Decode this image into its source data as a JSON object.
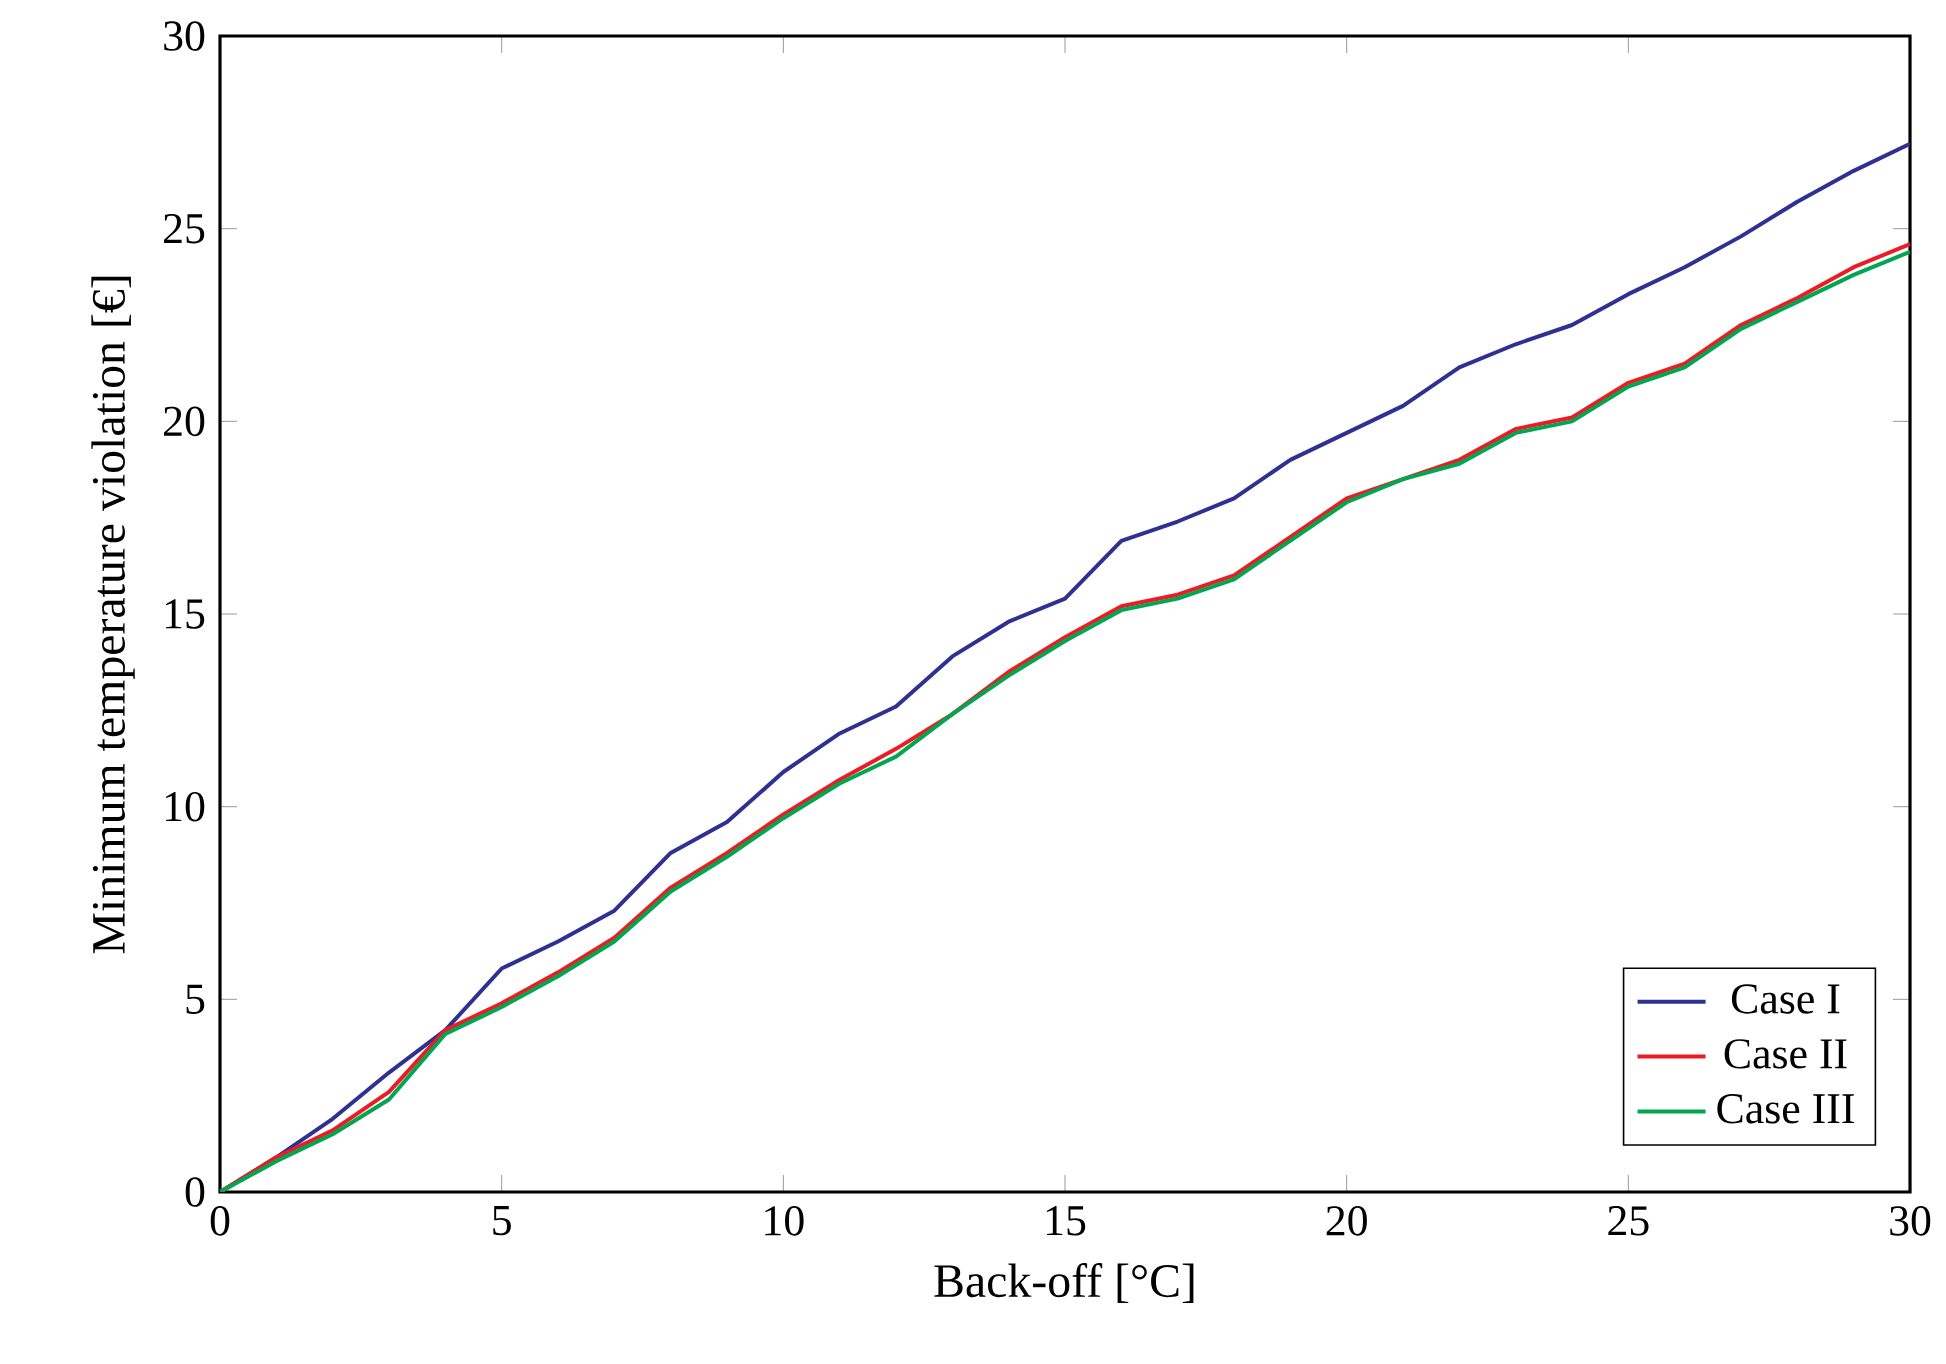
{
  "chart_data": {
    "type": "line",
    "xlabel": "Back-off [°C]",
    "ylabel": "Minimum temperature violation [€]",
    "x": [
      0,
      1,
      2,
      3,
      4,
      5,
      6,
      7,
      8,
      9,
      10,
      11,
      12,
      13,
      14,
      15,
      16,
      17,
      18,
      19,
      20,
      21,
      22,
      23,
      24,
      25,
      26,
      27,
      28,
      29,
      30
    ],
    "series": [
      {
        "name": "Case I",
        "color": "#2e3192",
        "values": [
          0,
          0.9,
          1.9,
          3.1,
          4.2,
          5.8,
          6.5,
          7.3,
          8.8,
          9.6,
          10.9,
          11.9,
          12.6,
          13.9,
          14.8,
          15.4,
          16.9,
          17.4,
          18.0,
          19.0,
          19.7,
          20.4,
          21.4,
          22.0,
          22.5,
          23.3,
          24.0,
          24.8,
          25.7,
          26.5,
          27.2
        ]
      },
      {
        "name": "Case II",
        "color": "#ed1c24",
        "values": [
          0,
          0.9,
          1.6,
          2.6,
          4.2,
          4.9,
          5.7,
          6.6,
          7.9,
          8.8,
          9.8,
          10.7,
          11.5,
          12.4,
          13.5,
          14.4,
          15.2,
          15.5,
          16.0,
          17.0,
          18.0,
          18.5,
          19.0,
          19.8,
          20.1,
          21.0,
          21.5,
          22.5,
          23.2,
          24.0,
          24.6
        ]
      },
      {
        "name": "Case III",
        "color": "#00a651",
        "values": [
          0,
          0.8,
          1.5,
          2.4,
          4.1,
          4.8,
          5.6,
          6.5,
          7.8,
          8.7,
          9.7,
          10.6,
          11.3,
          12.4,
          13.4,
          14.3,
          15.1,
          15.4,
          15.9,
          16.9,
          17.9,
          18.5,
          18.9,
          19.7,
          20.0,
          20.9,
          21.4,
          22.4,
          23.1,
          23.8,
          24.4
        ]
      }
    ],
    "xlim": [
      0,
      30
    ],
    "ylim": [
      0,
      30
    ],
    "xticks": [
      0,
      5,
      10,
      15,
      20,
      25,
      30
    ],
    "yticks": [
      0,
      5,
      10,
      15,
      20,
      25,
      30
    ],
    "legend": "bottom right",
    "grid": false,
    "marker": "none",
    "line_style": "solid"
  }
}
